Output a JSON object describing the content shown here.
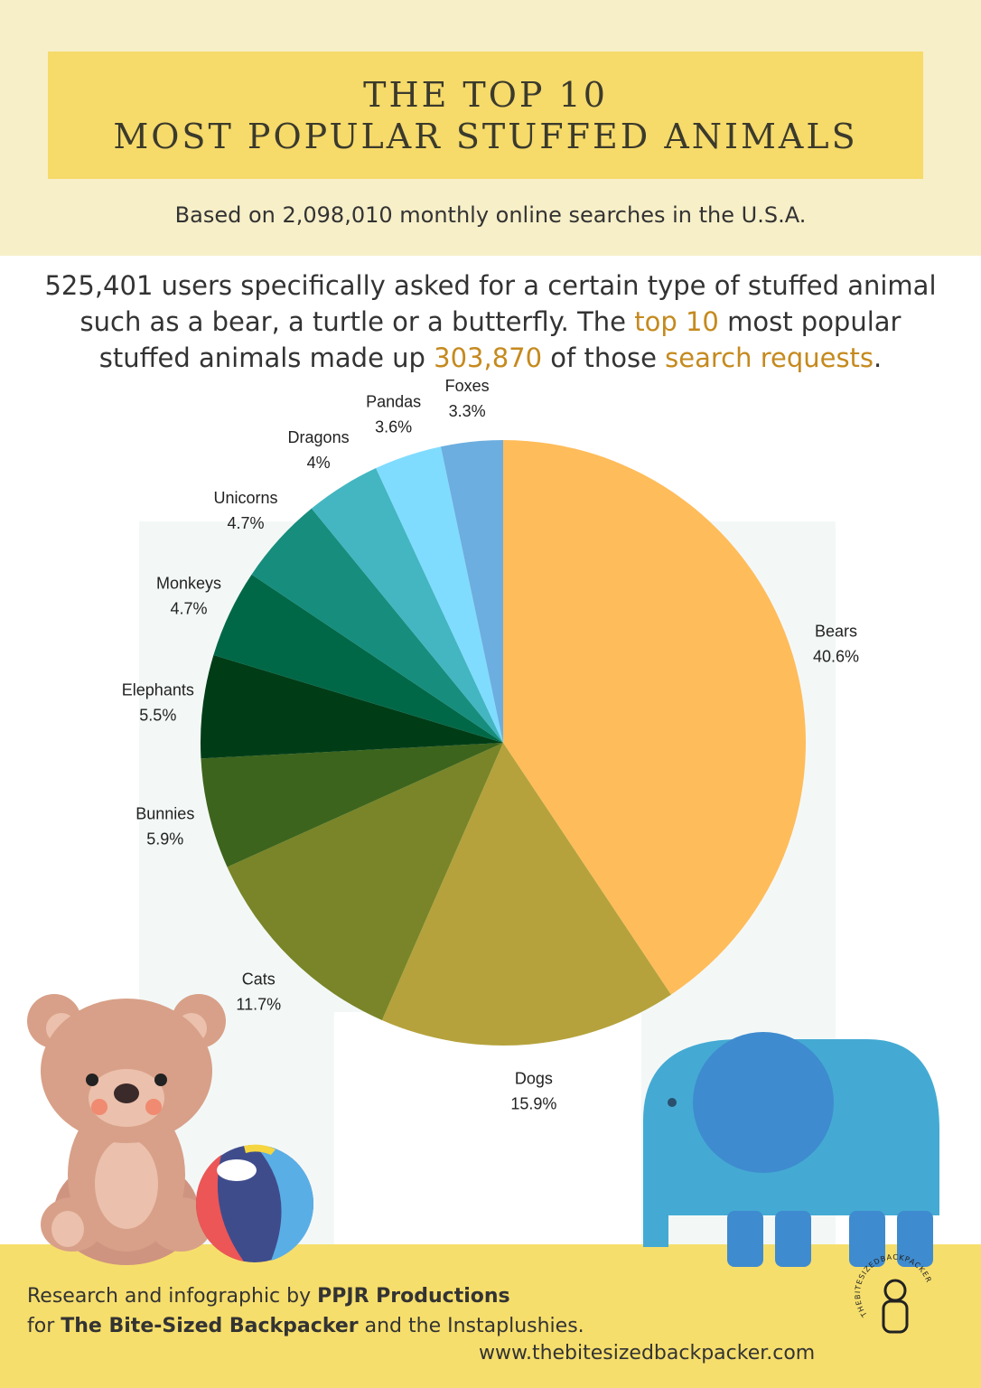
{
  "header": {
    "title_lines": [
      "THE TOP 10",
      "MOST POPULAR STUFFED ANIMALS"
    ],
    "subtitle": "Based on 2,098,010 monthly online searches in the U.S.A."
  },
  "intro": [
    {
      "text": "525,401 users specifically asked for a certain type of stuffed animal such as a bear, a turtle or a butterfly. The ",
      "highlight": false
    },
    {
      "text": "top 10",
      "highlight": true
    },
    {
      "text": " most popular stuffed animals made up ",
      "highlight": false
    },
    {
      "text": "303,870",
      "highlight": true
    },
    {
      "text": " of those ",
      "highlight": false
    },
    {
      "text": "search requests",
      "highlight": true
    },
    {
      "text": ".",
      "highlight": false
    }
  ],
  "chart_data": {
    "type": "pie",
    "categories": [
      "Bears",
      "Dogs",
      "Cats",
      "Bunnies",
      "Elephants",
      "Monkeys",
      "Unicorns",
      "Dragons",
      "Pandas",
      "Foxes"
    ],
    "values": [
      40.6,
      15.9,
      11.7,
      5.9,
      5.5,
      4.7,
      4.7,
      4,
      3.6,
      3.3
    ],
    "value_labels": [
      "40.6%",
      "15.9%",
      "11.7%",
      "5.9%",
      "5.5%",
      "4.7%",
      "4.7%",
      "4%",
      "3.6%",
      "3.3%"
    ],
    "colors": [
      "#ffbc5a",
      "#b5a23c",
      "#798528",
      "#3d641c",
      "#003d17",
      "#006847",
      "#178d7e",
      "#43b6c1",
      "#80dcff",
      "#6caedf"
    ]
  },
  "footer": {
    "line1": [
      {
        "text": "Research and infographic by ",
        "bold": false
      },
      {
        "text": "PPJR Productions",
        "bold": true
      }
    ],
    "line2": [
      {
        "text": "for ",
        "bold": false
      },
      {
        "text": "The Bite-Sized Backpacker",
        "bold": true
      },
      {
        "text": " and the Instaplushies.",
        "bold": false
      }
    ],
    "url": "www.thebitesizedbackpacker.com",
    "logo_text": "THEBITESIZEDBACKPACKER"
  }
}
